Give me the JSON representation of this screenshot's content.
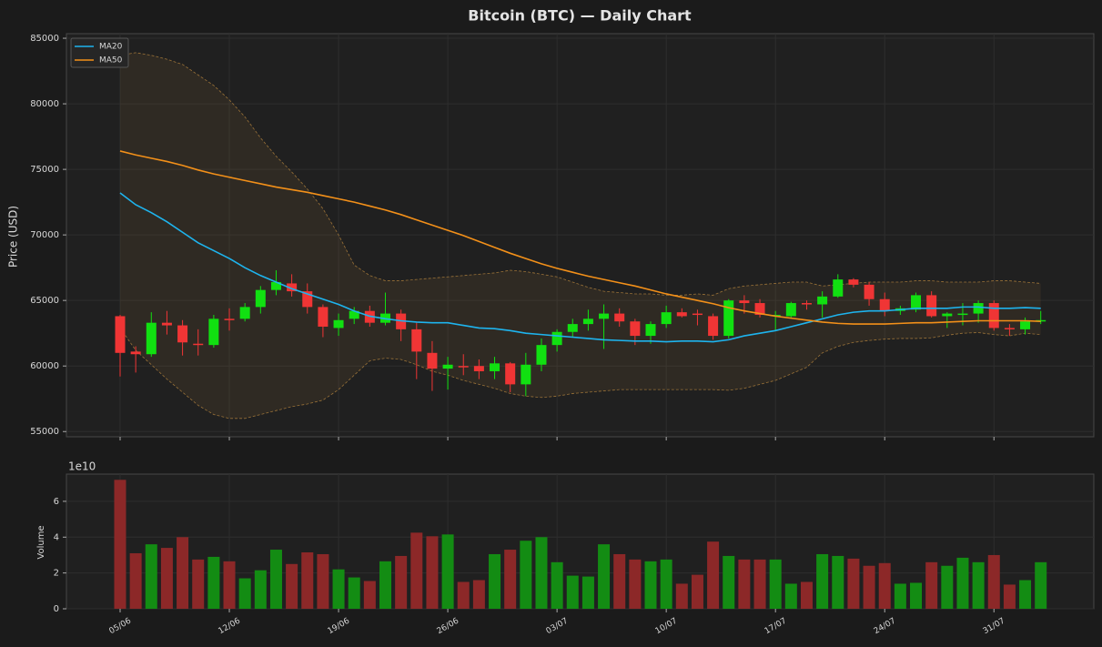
{
  "chart_data": [
    {
      "type": "candlestick",
      "title": "Bitcoin (BTC) — Daily Chart",
      "ylabel": "Price (USD)",
      "categories": [
        "05/06",
        null,
        null,
        null,
        null,
        null,
        null,
        "12/06",
        null,
        null,
        null,
        null,
        null,
        null,
        "19/06",
        null,
        null,
        null,
        null,
        null,
        null,
        "26/06",
        null,
        null,
        null,
        null,
        null,
        null,
        "03/07",
        null,
        null,
        null,
        null,
        null,
        null,
        "10/07",
        null,
        null,
        null,
        null,
        null,
        null,
        "17/07",
        null,
        null,
        null,
        null,
        null,
        null,
        "24/07",
        null,
        null,
        null,
        null,
        null,
        null,
        "31/07",
        null,
        null,
        null
      ],
      "open": [
        63800,
        61100,
        60900,
        63300,
        63100,
        61700,
        61600,
        63600,
        63600,
        64500,
        65800,
        66300,
        65700,
        64500,
        62900,
        63600,
        64200,
        63300,
        64000,
        62800,
        61000,
        59800,
        60000,
        60000,
        59600,
        60200,
        58600,
        60100,
        61600,
        62600,
        63200,
        63600,
        64000,
        63400,
        62300,
        63200,
        64100,
        64000,
        63800,
        62300,
        65000,
        64800,
        63800,
        63800,
        64800,
        64700,
        65300,
        66600,
        66200,
        65100,
        64200,
        64300,
        65400,
        63800,
        63900,
        64000,
        64800,
        62900,
        62800,
        63400
      ],
      "high": [
        63900,
        61500,
        64100,
        64200,
        63500,
        62800,
        63900,
        64400,
        64800,
        66100,
        67300,
        67000,
        66300,
        64700,
        64000,
        64500,
        64600,
        65600,
        64300,
        63300,
        61900,
        60700,
        60900,
        60500,
        60700,
        60300,
        61000,
        62100,
        62800,
        63600,
        64300,
        64700,
        64400,
        63600,
        63400,
        64600,
        64400,
        64300,
        64000,
        65100,
        65400,
        65100,
        64200,
        64900,
        65000,
        65700,
        67000,
        66700,
        66400,
        65600,
        64600,
        65600,
        65700,
        64100,
        64800,
        65000,
        65000,
        63200,
        63700,
        64200
      ],
      "low": [
        59200,
        59500,
        60700,
        62400,
        60800,
        60800,
        61400,
        62700,
        63400,
        64000,
        65400,
        65300,
        64000,
        62200,
        62300,
        63200,
        63000,
        63100,
        61900,
        59000,
        58100,
        58200,
        59300,
        59000,
        59000,
        58000,
        57700,
        59600,
        61100,
        62200,
        62700,
        61300,
        63000,
        61600,
        61700,
        62900,
        63700,
        63100,
        62000,
        62100,
        64000,
        63700,
        62700,
        63700,
        64300,
        63700,
        65200,
        66000,
        64600,
        63800,
        63900,
        64100,
        63700,
        62900,
        63100,
        63300,
        62700,
        62300,
        62400,
        63200
      ],
      "close": [
        61000,
        60900,
        63300,
        63100,
        61800,
        61600,
        63600,
        63500,
        64500,
        65800,
        66400,
        65700,
        64500,
        63000,
        63500,
        64200,
        63300,
        64000,
        62800,
        61100,
        59800,
        60100,
        59900,
        59600,
        60200,
        58600,
        60100,
        61600,
        62600,
        63200,
        63600,
        64000,
        63400,
        62300,
        63200,
        64100,
        63800,
        63900,
        62300,
        65000,
        64800,
        63900,
        63900,
        64800,
        64700,
        65300,
        66600,
        66200,
        65100,
        64200,
        64400,
        65400,
        63800,
        64000,
        64000,
        64800,
        62900,
        62800,
        63400,
        63500
      ],
      "up_color": "#11e011",
      "down_color": "#f03535",
      "series": [
        {
          "name": "MA20",
          "color": "#1eb4ee",
          "values": [
            73200,
            72300,
            71700,
            71000,
            70200,
            69400,
            68800,
            68200,
            67500,
            66900,
            66400,
            65900,
            65500,
            65100,
            64700,
            64200,
            63800,
            63600,
            63450,
            63350,
            63300,
            63300,
            63100,
            62900,
            62850,
            62700,
            62500,
            62400,
            62300,
            62200,
            62100,
            62000,
            61950,
            61900,
            61900,
            61850,
            61900,
            61900,
            61850,
            62000,
            62300,
            62500,
            62700,
            63000,
            63300,
            63600,
            63900,
            64100,
            64200,
            64200,
            64300,
            64400,
            64400,
            64400,
            64500,
            64500,
            64400,
            64400,
            64450,
            64400
          ]
        },
        {
          "name": "MA50",
          "color": "#f39019",
          "values": [
            76400,
            76100,
            75850,
            75600,
            75300,
            74950,
            74650,
            74400,
            74150,
            73900,
            73650,
            73450,
            73250,
            73000,
            72750,
            72500,
            72200,
            71900,
            71550,
            71150,
            70750,
            70350,
            69950,
            69500,
            69050,
            68600,
            68200,
            67800,
            67450,
            67150,
            66850,
            66600,
            66350,
            66100,
            65800,
            65500,
            65250,
            65000,
            64750,
            64450,
            64200,
            64000,
            63800,
            63650,
            63500,
            63350,
            63250,
            63200,
            63200,
            63200,
            63250,
            63300,
            63300,
            63350,
            63400,
            63450,
            63450,
            63450,
            63450,
            63400
          ]
        }
      ],
      "band": {
        "color": "#9a7238",
        "upper": [
          83700,
          83900,
          83700,
          83400,
          83000,
          82200,
          81400,
          80300,
          79000,
          77400,
          76000,
          74800,
          73500,
          72000,
          70000,
          67700,
          66900,
          66500,
          66500,
          66600,
          66700,
          66800,
          66900,
          67000,
          67100,
          67300,
          67200,
          67000,
          66800,
          66400,
          66000,
          65700,
          65600,
          65500,
          65500,
          65400,
          65400,
          65500,
          65400,
          65900,
          66100,
          66200,
          66300,
          66400,
          66400,
          66100,
          66200,
          66300,
          66400,
          66400,
          66400,
          66500,
          66500,
          66400,
          66400,
          66400,
          66500,
          66500,
          66400,
          66300
        ],
        "lower": [
          62900,
          61200,
          60100,
          59000,
          58000,
          57000,
          56300,
          56000,
          56000,
          56300,
          56600,
          56900,
          57100,
          57400,
          58200,
          59300,
          60400,
          60600,
          60500,
          60100,
          59600,
          59300,
          58900,
          58600,
          58300,
          57900,
          57700,
          57600,
          57700,
          57900,
          58000,
          58100,
          58200,
          58200,
          58200,
          58200,
          58200,
          58200,
          58200,
          58150,
          58300,
          58600,
          58900,
          59400,
          59900,
          61000,
          61500,
          61800,
          61950,
          62050,
          62100,
          62100,
          62150,
          62350,
          62500,
          62550,
          62400,
          62300,
          62500,
          62400
        ]
      },
      "ylim": [
        54600,
        85350
      ],
      "yticks": [
        55000,
        60000,
        65000,
        70000,
        75000,
        80000,
        85000
      ],
      "grid": true,
      "legend": "upper left"
    },
    {
      "type": "bar",
      "ylabel": "Volume",
      "offset_label": "1e10",
      "values": [
        7.2,
        3.1,
        3.6,
        3.4,
        4.0,
        2.75,
        2.9,
        2.65,
        1.7,
        2.15,
        3.3,
        2.5,
        3.15,
        3.05,
        2.2,
        1.75,
        1.55,
        2.65,
        2.95,
        4.25,
        4.05,
        4.15,
        1.5,
        1.6,
        3.05,
        3.3,
        3.8,
        4.0,
        2.6,
        1.85,
        1.8,
        3.6,
        3.05,
        2.75,
        2.65,
        2.75,
        1.4,
        1.9,
        3.75,
        2.95,
        2.75,
        2.75,
        2.75,
        1.4,
        1.5,
        3.05,
        2.95,
        2.8,
        2.4,
        2.55,
        1.4,
        1.45,
        2.6,
        2.4,
        2.85,
        2.6,
        3.0,
        1.35,
        1.6,
        2.6
      ],
      "up_color": "#138c13",
      "down_color": "#8c2828",
      "ylim": [
        0,
        7.52
      ],
      "yticks": [
        0,
        2,
        4,
        6
      ],
      "grid": true
    }
  ]
}
